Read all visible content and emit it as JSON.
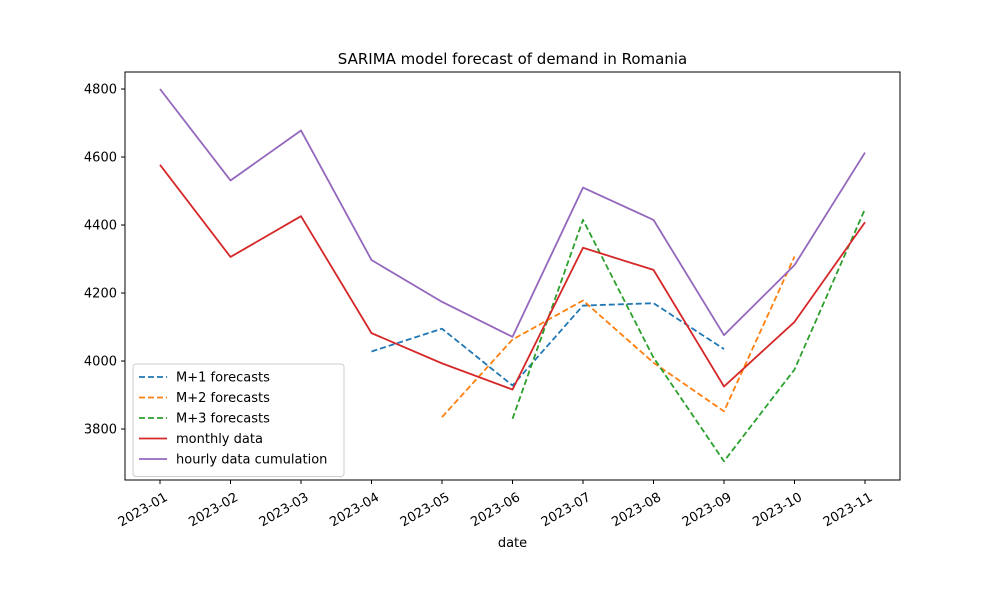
{
  "chart_data": {
    "type": "line",
    "title": "SARIMA model forecast of demand in Romania",
    "xlabel": "date",
    "ylabel": "",
    "x": [
      "2023-01",
      "2023-02",
      "2023-03",
      "2023-04",
      "2023-05",
      "2023-06",
      "2023-07",
      "2023-08",
      "2023-09",
      "2023-10",
      "2023-11"
    ],
    "ylim": [
      3650,
      4850
    ],
    "yticks": [
      3800,
      4000,
      4200,
      4400,
      4600,
      4800
    ],
    "grid": false,
    "legend_position": "lower-left",
    "series": [
      {
        "name": "M+1 forecasts",
        "color": "#1f77b4",
        "style": "dashed",
        "values": [
          null,
          null,
          null,
          4028,
          4095,
          3928,
          4163,
          4170,
          4035,
          null,
          null
        ]
      },
      {
        "name": "M+2 forecasts",
        "color": "#ff7f0e",
        "style": "dashed",
        "values": [
          null,
          null,
          null,
          null,
          3835,
          4063,
          4178,
          3995,
          3852,
          4307,
          null
        ]
      },
      {
        "name": "M+3 forecasts",
        "color": "#2ca02c",
        "style": "dashed",
        "values": [
          null,
          null,
          null,
          null,
          null,
          3830,
          4415,
          4010,
          3705,
          3975,
          4447
        ]
      },
      {
        "name": "monthly data",
        "color": "#d62728",
        "style": "solid",
        "values": [
          4577,
          4306,
          4426,
          4082,
          3993,
          3916,
          4333,
          4268,
          3925,
          4115,
          4408
        ]
      },
      {
        "name": "hourly data cumulation",
        "color": "#9467bd",
        "style": "solid",
        "values": [
          4800,
          4531,
          4678,
          4297,
          4174,
          4071,
          4510,
          4415,
          4076,
          4282,
          4613
        ]
      }
    ]
  }
}
